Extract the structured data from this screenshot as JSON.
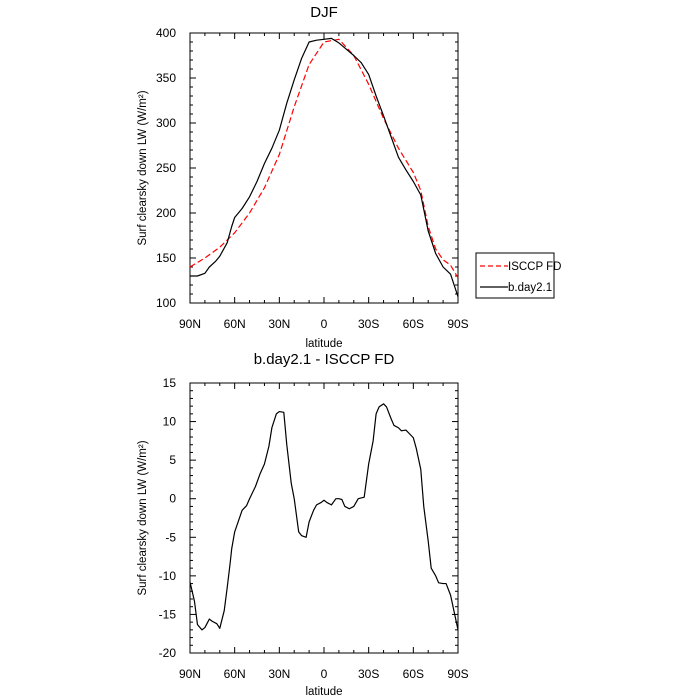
{
  "chart_data": [
    {
      "type": "line",
      "title": "DJF",
      "xlabel": "latitude",
      "ylabel": "Surf clearsky down LW (W/m²)",
      "xlim": [
        90,
        -90
      ],
      "ylim": [
        100,
        400
      ],
      "x_ticks": [
        90,
        60,
        30,
        0,
        -30,
        -60,
        -90
      ],
      "x_tick_labels": [
        "90N",
        "60N",
        "30N",
        "0",
        "30S",
        "60S",
        "90S"
      ],
      "y_ticks": [
        100,
        150,
        200,
        250,
        300,
        350,
        400
      ],
      "y_tick_labels": [
        "100",
        "150",
        "200",
        "250",
        "300",
        "350",
        "400"
      ],
      "legend_position": "right",
      "series": [
        {
          "name": "ISCCP FD",
          "color": "#ff0000",
          "dash": "dashed",
          "x": [
            90,
            80,
            70,
            60,
            50,
            40,
            30,
            20,
            10,
            0,
            -10,
            -20,
            -30,
            -40,
            -50,
            -60,
            -65,
            -70,
            -75,
            -80,
            -85,
            -90
          ],
          "y": [
            140,
            150,
            162,
            178,
            200,
            228,
            265,
            318,
            365,
            390,
            393,
            375,
            343,
            305,
            272,
            245,
            225,
            185,
            160,
            148,
            142,
            128
          ]
        },
        {
          "name": "b.day2.1",
          "color": "#000000",
          "dash": "solid",
          "x": [
            90,
            85,
            80,
            77,
            73,
            70,
            65,
            62,
            60,
            55,
            50,
            45,
            40,
            35,
            30,
            25,
            20,
            15,
            10,
            5,
            0,
            -5,
            -10,
            -15,
            -20,
            -25,
            -30,
            -35,
            -40,
            -45,
            -50,
            -55,
            -60,
            -65,
            -70,
            -75,
            -80,
            -85,
            -90
          ],
          "y": [
            130,
            130,
            133,
            140,
            146,
            152,
            167,
            185,
            195,
            205,
            218,
            235,
            255,
            272,
            292,
            322,
            348,
            372,
            390,
            392,
            393,
            394,
            389,
            382,
            375,
            367,
            354,
            330,
            308,
            285,
            262,
            248,
            235,
            220,
            180,
            155,
            140,
            132,
            107
          ]
        }
      ]
    },
    {
      "type": "line",
      "title": "b.day2.1 - ISCCP FD",
      "xlabel": "latitude",
      "ylabel": "Surf clearsky down LW (W/m²)",
      "xlim": [
        90,
        -90
      ],
      "ylim": [
        -20,
        15
      ],
      "x_ticks": [
        90,
        60,
        30,
        0,
        -30,
        -60,
        -90
      ],
      "x_tick_labels": [
        "90N",
        "60N",
        "30N",
        "0",
        "30S",
        "60S",
        "90S"
      ],
      "y_ticks": [
        -20,
        -15,
        -10,
        -5,
        0,
        5,
        10,
        15
      ],
      "y_tick_labels": [
        "-20",
        "-15",
        "-10",
        "-5",
        "0",
        "5",
        "10",
        "15"
      ],
      "series": [
        {
          "color": "#000000",
          "dash": "solid",
          "x": [
            90,
            87,
            85,
            82,
            80,
            77,
            75,
            72,
            70,
            67,
            65,
            63,
            62,
            60,
            55,
            52,
            50,
            46,
            43,
            40,
            37,
            35,
            32,
            30,
            27,
            25,
            22,
            20,
            17,
            15,
            12,
            10,
            7,
            5,
            2,
            0,
            -2,
            -5,
            -8,
            -10,
            -12,
            -14,
            -17,
            -20,
            -23,
            -27,
            -30,
            -33,
            -35,
            -37,
            -40,
            -42,
            -45,
            -47,
            -50,
            -52,
            -55,
            -57,
            -60,
            -62,
            -65,
            -67,
            -70,
            -72,
            -75,
            -77,
            -80,
            -82,
            -85,
            -90
          ],
          "y": [
            -10.8,
            -13.3,
            -16.3,
            -17.0,
            -16.7,
            -15.6,
            -15.9,
            -16.2,
            -16.8,
            -14.5,
            -11.5,
            -8.3,
            -6.5,
            -4.3,
            -1.5,
            -0.9,
            0.0,
            1.6,
            3.2,
            4.5,
            6.8,
            9.2,
            11.0,
            11.3,
            11.2,
            7.0,
            2.0,
            0.0,
            -4.3,
            -4.8,
            -5.0,
            -3.0,
            -1.5,
            -0.8,
            -0.5,
            -0.2,
            -0.5,
            -0.8,
            0.0,
            0.0,
            -0.1,
            -1.0,
            -1.3,
            -1.0,
            0.0,
            0.2,
            4.5,
            7.5,
            11.0,
            11.9,
            12.3,
            11.9,
            10.4,
            9.5,
            9.2,
            8.8,
            8.9,
            8.5,
            7.9,
            6.5,
            3.8,
            -1.0,
            -5.5,
            -9.0,
            -10.0,
            -10.9,
            -11.0,
            -11.0,
            -12.5,
            -17.0
          ]
        }
      ]
    }
  ]
}
